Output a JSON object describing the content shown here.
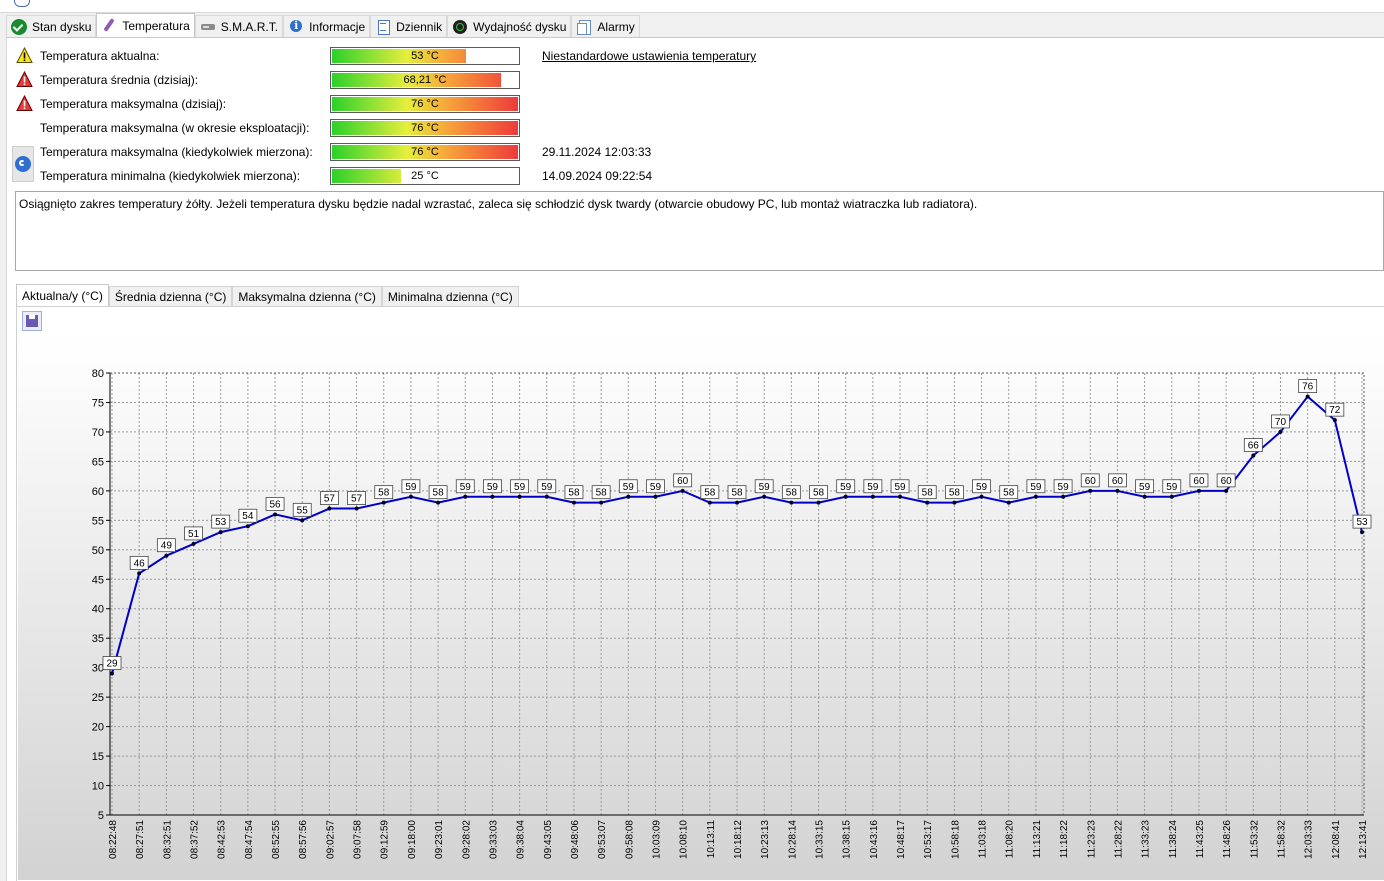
{
  "tabs": [
    {
      "label": "Stan dysku",
      "icon": "check-circle-icon"
    },
    {
      "label": "Temperatura",
      "icon": "thermometer-icon"
    },
    {
      "label": "S.M.A.R.T.",
      "icon": "hard-disk-icon"
    },
    {
      "label": "Informacje",
      "icon": "info-icon"
    },
    {
      "label": "Dziennik",
      "icon": "log-icon"
    },
    {
      "label": "Wydajność dysku",
      "icon": "performance-icon"
    },
    {
      "label": "Alarmy",
      "icon": "alarm-icon"
    }
  ],
  "temps": {
    "current": {
      "label": "Temperatura aktualna:",
      "value": "53 °C",
      "fill": 0.72,
      "warn": "yellow-warning-icon"
    },
    "avg_today": {
      "label": "Temperatura średnia (dzisiaj):",
      "value": "68,21 °C",
      "fill": 0.91,
      "warn": "red-warning-icon"
    },
    "max_today": {
      "label": "Temperatura maksymalna (dzisiaj):",
      "value": "76 °C",
      "fill": 1.0,
      "warn": "red-warning-icon"
    },
    "max_lifetime": {
      "label": "Temperatura maksymalna (w okresie eksploatacji):",
      "value": "76 °C",
      "fill": 1.0
    },
    "max_ever": {
      "label": "Temperatura maksymalna (kiedykolwiek mierzona):",
      "value": "76 °C",
      "fill": 1.0,
      "date": "29.11.2024 12:03:33"
    },
    "min_ever": {
      "label": "Temperatura minimalna (kiedykolwiek mierzona):",
      "value": "25 °C",
      "fill": 0.37,
      "date": "14.09.2024 09:22:54"
    }
  },
  "custom_link": "Niestandardowe ustawienia temperatury",
  "message": "Osiągnięto zakres temperatury żółty. Jeżeli temperatura dysku będzie nadal wzrastać, zaleca się schłodzić dysk twardy (otwarcie obudowy PC, lub montaż wiatraczka lub radiatora).",
  "subtabs": [
    "Aktualna/y (°C)",
    "Średnia dzienna (°C)",
    "Maksymalna dzienna (°C)",
    "Minimalna dzienna (°C)"
  ],
  "colors": {
    "line": "#0000c8",
    "bar_green": "#2bd12b",
    "bar_yellow": "#e6ee3c",
    "bar_orange": "#f6a53a",
    "bar_red": "#ef3b3b"
  },
  "chart_data": {
    "type": "line",
    "x": [
      "08:22:48",
      "08:27:51",
      "08:32:51",
      "08:37:52",
      "08:42:53",
      "08:47:54",
      "08:52:55",
      "08:57:56",
      "09:02:57",
      "09:07:58",
      "09:12:59",
      "09:18:00",
      "09:23:01",
      "09:28:02",
      "09:33:03",
      "09:38:04",
      "09:43:05",
      "09:48:06",
      "09:53:07",
      "09:58:08",
      "10:03:09",
      "10:08:10",
      "10:13:11",
      "10:18:12",
      "10:23:13",
      "10:28:14",
      "10:33:15",
      "10:38:15",
      "10:43:16",
      "10:48:17",
      "10:53:17",
      "10:58:18",
      "11:03:18",
      "11:08:20",
      "11:13:21",
      "11:18:22",
      "11:23:23",
      "11:28:22",
      "11:33:23",
      "11:38:24",
      "11:43:25",
      "11:48:26",
      "11:53:32",
      "11:58:32",
      "12:03:33",
      "12:08:41",
      "12:13:41"
    ],
    "values": [
      29,
      46,
      49,
      51,
      53,
      54,
      56,
      55,
      57,
      57,
      58,
      59,
      58,
      59,
      59,
      59,
      59,
      58,
      58,
      59,
      59,
      60,
      58,
      58,
      59,
      58,
      58,
      59,
      59,
      59,
      58,
      58,
      59,
      58,
      59,
      59,
      60,
      60,
      59,
      59,
      60,
      60,
      66,
      70,
      76,
      72,
      53
    ],
    "yticks": [
      5,
      10,
      15,
      20,
      25,
      30,
      35,
      40,
      45,
      50,
      55,
      60,
      65,
      70,
      75,
      80
    ],
    "ylim": [
      5,
      80
    ],
    "grid": true
  }
}
